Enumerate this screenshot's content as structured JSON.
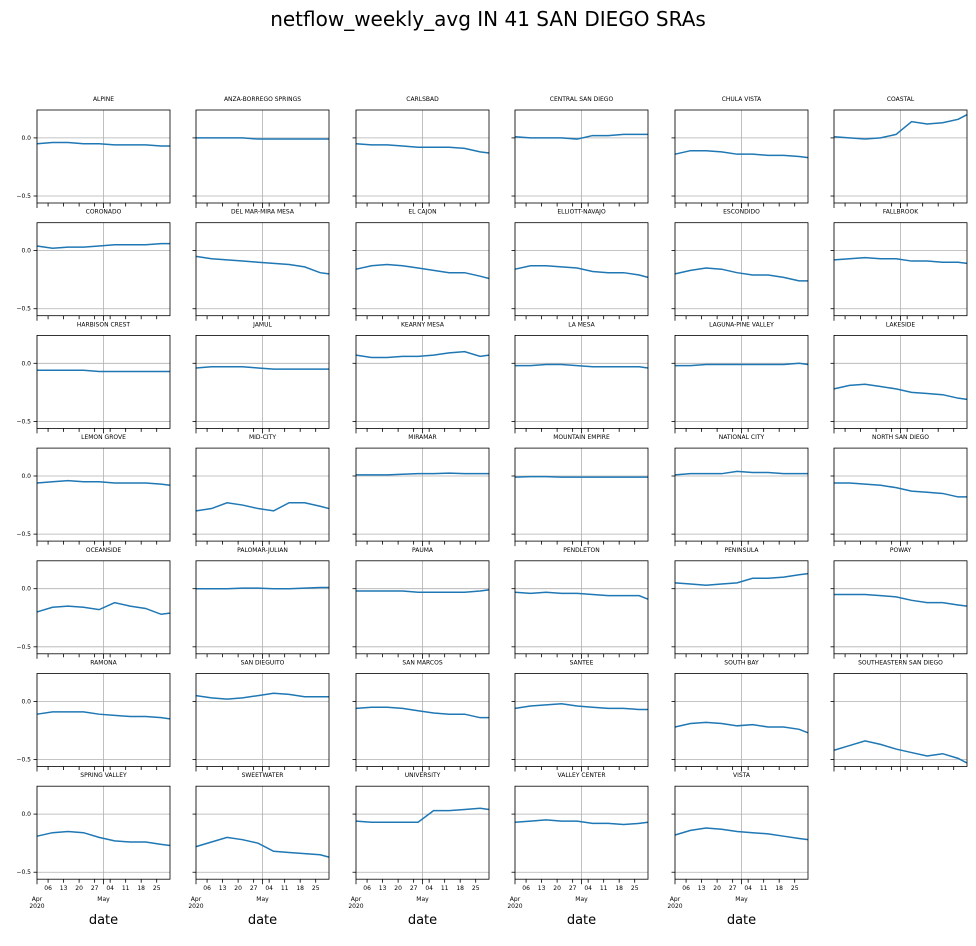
{
  "chart_data": {
    "type": "line",
    "title": "netflow_weekly_avg IN 41 SAN DIEGO SRAs",
    "xlabel": "date",
    "color": "#1f77b4",
    "grid": true,
    "x": [
      "2020-04-01",
      "2020-04-08",
      "2020-04-15",
      "2020-04-22",
      "2020-04-29",
      "2020-05-06",
      "2020-05-13",
      "2020-05-20",
      "2020-05-27",
      "2020-05-31"
    ],
    "xlim": [
      "2020-04-01",
      "2020-05-31"
    ],
    "xticks": [
      {
        "value": "2020-04-06",
        "label": "06"
      },
      {
        "value": "2020-04-13",
        "label": "13"
      },
      {
        "value": "2020-04-20",
        "label": "20"
      },
      {
        "value": "2020-04-27",
        "label": "27"
      },
      {
        "value": "2020-05-04",
        "label": "04"
      },
      {
        "value": "2020-05-11",
        "label": "11"
      },
      {
        "value": "2020-05-18",
        "label": "18"
      },
      {
        "value": "2020-05-25",
        "label": "25"
      }
    ],
    "xticks_month": [
      {
        "value": "2020-04-01",
        "label": "Apr\n2020"
      },
      {
        "value": "2020-05-01",
        "label": "May"
      }
    ],
    "ylim": [
      -0.56,
      0.24
    ],
    "yticks": [
      {
        "value": -0.5,
        "label": "−0.5"
      },
      {
        "value": 0,
        "label": "0.0"
      }
    ],
    "series": [
      {
        "name": "ALPINE",
        "values": [
          -0.05,
          -0.04,
          -0.04,
          -0.05,
          -0.05,
          -0.06,
          -0.06,
          -0.06,
          -0.07,
          -0.07
        ]
      },
      {
        "name": "ANZA-BORREGO SPRINGS",
        "values": [
          0.0,
          0.0,
          0.0,
          0.0,
          -0.01,
          -0.01,
          -0.01,
          -0.01,
          -0.01,
          -0.01
        ]
      },
      {
        "name": "CARLSBAD",
        "values": [
          -0.05,
          -0.06,
          -0.06,
          -0.07,
          -0.08,
          -0.08,
          -0.08,
          -0.09,
          -0.12,
          -0.13
        ]
      },
      {
        "name": "CENTRAL SAN DIEGO",
        "values": [
          0.01,
          0.0,
          0.0,
          0.0,
          -0.01,
          0.02,
          0.02,
          0.03,
          0.03,
          0.03
        ]
      },
      {
        "name": "CHULA VISTA",
        "values": [
          -0.14,
          -0.11,
          -0.11,
          -0.12,
          -0.14,
          -0.14,
          -0.15,
          -0.15,
          -0.16,
          -0.17
        ]
      },
      {
        "name": "COASTAL",
        "values": [
          0.01,
          0.0,
          -0.01,
          0.0,
          0.03,
          0.14,
          0.12,
          0.13,
          0.16,
          0.2
        ]
      },
      {
        "name": "CORONADO",
        "values": [
          0.04,
          0.02,
          0.03,
          0.03,
          0.04,
          0.05,
          0.05,
          0.05,
          0.06,
          0.06
        ]
      },
      {
        "name": "DEL MAR-MIRA MESA",
        "values": [
          -0.05,
          -0.07,
          -0.08,
          -0.09,
          -0.1,
          -0.11,
          -0.12,
          -0.14,
          -0.19,
          -0.2
        ]
      },
      {
        "name": "EL CAJON",
        "values": [
          -0.16,
          -0.13,
          -0.12,
          -0.13,
          -0.15,
          -0.17,
          -0.19,
          -0.19,
          -0.22,
          -0.24
        ]
      },
      {
        "name": "ELLIOTT-NAVAJO",
        "values": [
          -0.16,
          -0.13,
          -0.13,
          -0.14,
          -0.15,
          -0.18,
          -0.19,
          -0.19,
          -0.21,
          -0.23
        ]
      },
      {
        "name": "ESCONDIDO",
        "values": [
          -0.2,
          -0.17,
          -0.15,
          -0.16,
          -0.19,
          -0.21,
          -0.21,
          -0.23,
          -0.26,
          -0.26
        ]
      },
      {
        "name": "FALLBROOK",
        "values": [
          -0.08,
          -0.07,
          -0.06,
          -0.07,
          -0.07,
          -0.09,
          -0.09,
          -0.1,
          -0.1,
          -0.11
        ]
      },
      {
        "name": "HARBISON CREST",
        "values": [
          -0.06,
          -0.06,
          -0.06,
          -0.06,
          -0.07,
          -0.07,
          -0.07,
          -0.07,
          -0.07,
          -0.07
        ]
      },
      {
        "name": "JAMUL",
        "values": [
          -0.04,
          -0.03,
          -0.03,
          -0.03,
          -0.04,
          -0.05,
          -0.05,
          -0.05,
          -0.05,
          -0.05
        ]
      },
      {
        "name": "KEARNY MESA",
        "values": [
          0.07,
          0.05,
          0.05,
          0.06,
          0.06,
          0.07,
          0.09,
          0.1,
          0.06,
          0.07
        ]
      },
      {
        "name": "LA MESA",
        "values": [
          -0.02,
          -0.02,
          -0.01,
          -0.01,
          -0.02,
          -0.03,
          -0.03,
          -0.03,
          -0.03,
          -0.04
        ]
      },
      {
        "name": "LAGUNA-PINE VALLEY",
        "values": [
          -0.02,
          -0.02,
          -0.01,
          -0.01,
          -0.01,
          -0.01,
          -0.01,
          -0.01,
          0.0,
          -0.01
        ]
      },
      {
        "name": "LAKESIDE",
        "values": [
          -0.22,
          -0.19,
          -0.18,
          -0.2,
          -0.22,
          -0.25,
          -0.26,
          -0.27,
          -0.3,
          -0.31
        ]
      },
      {
        "name": "LEMON GROVE",
        "values": [
          -0.06,
          -0.05,
          -0.04,
          -0.05,
          -0.05,
          -0.06,
          -0.06,
          -0.06,
          -0.07,
          -0.08
        ]
      },
      {
        "name": "MID-CITY",
        "values": [
          -0.3,
          -0.28,
          -0.23,
          -0.25,
          -0.28,
          -0.3,
          -0.23,
          -0.23,
          -0.26,
          -0.28
        ]
      },
      {
        "name": "MIRAMAR",
        "values": [
          0.01,
          0.01,
          0.01,
          0.015,
          0.02,
          0.02,
          0.025,
          0.02,
          0.02,
          0.02
        ]
      },
      {
        "name": "MOUNTAIN EMPIRE",
        "values": [
          -0.01,
          -0.005,
          -0.005,
          -0.01,
          -0.01,
          -0.01,
          -0.01,
          -0.01,
          -0.01,
          -0.01
        ]
      },
      {
        "name": "NATIONAL CITY",
        "values": [
          0.01,
          0.02,
          0.02,
          0.02,
          0.04,
          0.03,
          0.03,
          0.02,
          0.02,
          0.02
        ]
      },
      {
        "name": "NORTH SAN DIEGO",
        "values": [
          -0.06,
          -0.06,
          -0.07,
          -0.08,
          -0.1,
          -0.13,
          -0.14,
          -0.15,
          -0.18,
          -0.18
        ]
      },
      {
        "name": "OCEANSIDE",
        "values": [
          -0.2,
          -0.16,
          -0.15,
          -0.16,
          -0.18,
          -0.12,
          -0.15,
          -0.17,
          -0.22,
          -0.21
        ]
      },
      {
        "name": "PALOMAR-JULIAN",
        "values": [
          0.0,
          0.0,
          0.0,
          0.005,
          0.005,
          0.0,
          0.0,
          0.005,
          0.01,
          0.01
        ]
      },
      {
        "name": "PAUMA",
        "values": [
          -0.02,
          -0.02,
          -0.02,
          -0.02,
          -0.03,
          -0.03,
          -0.03,
          -0.03,
          -0.02,
          -0.01
        ]
      },
      {
        "name": "PENDLETON",
        "values": [
          -0.03,
          -0.04,
          -0.03,
          -0.04,
          -0.04,
          -0.05,
          -0.06,
          -0.06,
          -0.06,
          -0.09
        ]
      },
      {
        "name": "PENINSULA",
        "values": [
          0.05,
          0.04,
          0.03,
          0.04,
          0.05,
          0.09,
          0.09,
          0.1,
          0.12,
          0.13
        ]
      },
      {
        "name": "POWAY",
        "values": [
          -0.05,
          -0.05,
          -0.05,
          -0.06,
          -0.07,
          -0.1,
          -0.12,
          -0.12,
          -0.14,
          -0.15
        ]
      },
      {
        "name": "RAMONA",
        "values": [
          -0.11,
          -0.09,
          -0.09,
          -0.09,
          -0.11,
          -0.12,
          -0.13,
          -0.13,
          -0.14,
          -0.15
        ]
      },
      {
        "name": "SAN DIEGUITO",
        "values": [
          0.05,
          0.03,
          0.02,
          0.03,
          0.05,
          0.07,
          0.06,
          0.04,
          0.04,
          0.04
        ]
      },
      {
        "name": "SAN MARCOS",
        "values": [
          -0.06,
          -0.05,
          -0.05,
          -0.06,
          -0.08,
          -0.1,
          -0.11,
          -0.11,
          -0.14,
          -0.14
        ]
      },
      {
        "name": "SANTEE",
        "values": [
          -0.06,
          -0.04,
          -0.03,
          -0.02,
          -0.04,
          -0.05,
          -0.06,
          -0.06,
          -0.07,
          -0.07
        ]
      },
      {
        "name": "SOUTH BAY",
        "values": [
          -0.22,
          -0.19,
          -0.18,
          -0.19,
          -0.21,
          -0.2,
          -0.22,
          -0.22,
          -0.24,
          -0.27
        ]
      },
      {
        "name": "SOUTHEASTERN SAN DIEGO",
        "values": [
          -0.42,
          -0.38,
          -0.34,
          -0.37,
          -0.41,
          -0.44,
          -0.47,
          -0.45,
          -0.49,
          -0.53
        ]
      },
      {
        "name": "SPRING VALLEY",
        "values": [
          -0.19,
          -0.16,
          -0.15,
          -0.16,
          -0.2,
          -0.23,
          -0.24,
          -0.24,
          -0.26,
          -0.27
        ]
      },
      {
        "name": "SWEETWATER",
        "values": [
          -0.28,
          -0.24,
          -0.2,
          -0.22,
          -0.25,
          -0.32,
          -0.33,
          -0.34,
          -0.35,
          -0.37
        ]
      },
      {
        "name": "UNIVERSITY",
        "values": [
          -0.06,
          -0.07,
          -0.07,
          -0.07,
          -0.07,
          0.03,
          0.03,
          0.04,
          0.05,
          0.04
        ]
      },
      {
        "name": "VALLEY CENTER",
        "values": [
          -0.07,
          -0.06,
          -0.05,
          -0.06,
          -0.06,
          -0.08,
          -0.08,
          -0.09,
          -0.08,
          -0.07
        ]
      },
      {
        "name": "VISTA",
        "values": [
          -0.18,
          -0.14,
          -0.12,
          -0.13,
          -0.15,
          -0.16,
          -0.17,
          -0.19,
          -0.21,
          -0.22
        ]
      }
    ]
  }
}
